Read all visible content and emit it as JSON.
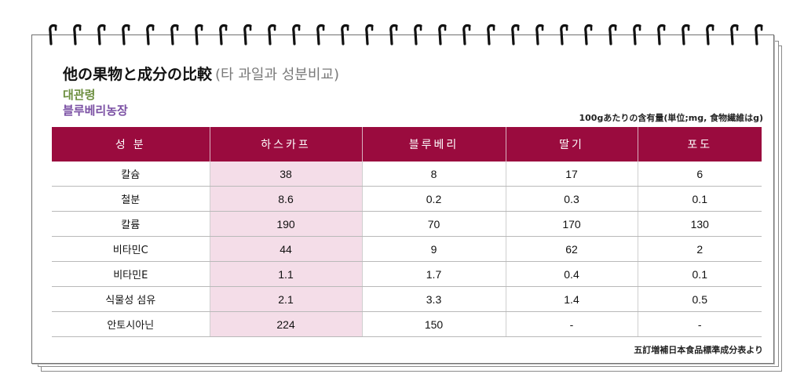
{
  "title": {
    "main": "他の果物と成分の比較",
    "sub": "(타 과일과 성분비교)"
  },
  "labels": {
    "green": "대관령",
    "purple": "블루베리농장"
  },
  "note": "100gあたりの含有量(単位;mg, 食物繊維はg)",
  "source": "五訂増補日本食品標準成分表より",
  "table": {
    "headers": [
      "성 분",
      "하스카프",
      "블루베리",
      "딸기",
      "포도"
    ],
    "rows": [
      [
        "칼슘",
        "38",
        "8",
        "17",
        "6"
      ],
      [
        "철분",
        "8.6",
        "0.2",
        "0.3",
        "0.1"
      ],
      [
        "칼륨",
        "190",
        "70",
        "170",
        "130"
      ],
      [
        "비타민C",
        "44",
        "9",
        "62",
        "2"
      ],
      [
        "비타민E",
        "1.1",
        "1.7",
        "0.4",
        "0.1"
      ],
      [
        "식물성 섬유",
        "2.1",
        "3.3",
        "1.4",
        "0.5"
      ],
      [
        "안토시아닌",
        "224",
        "150",
        "-",
        "-"
      ]
    ]
  },
  "colors": {
    "header_bg": "#9a0b3e",
    "highlight_col": "#f4dde8",
    "green_label": "#6b8e3e",
    "purple_label": "#7a4fa3"
  }
}
